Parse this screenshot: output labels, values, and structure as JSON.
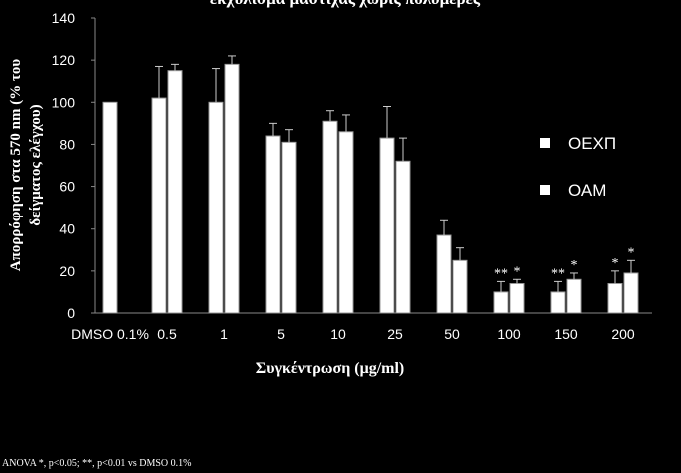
{
  "chart_data": {
    "type": "bar",
    "title": "εκχύλισμα μαστίχας χωρίς πολυμερές",
    "y_label": [
      "Απορρόφηση στα 570 nm (% του",
      "δείγματος ελέγχου)"
    ],
    "x_label": "Συγκέντρωση (μg/ml)",
    "footnote": "ANOVA *, p<0.05; **, p<0.01 vs DMSO 0.1%",
    "categories": [
      "DMSO 0.1%",
      "0.5",
      "1",
      "5",
      "10",
      "25",
      "50",
      "100",
      "150",
      "200"
    ],
    "series": [
      {
        "name": "ΟΕΧΠ",
        "color": "#ffffff",
        "values": [
          100,
          102,
          100,
          84,
          91,
          83,
          37,
          10,
          10,
          14
        ],
        "errors": [
          null,
          15,
          16,
          6,
          5,
          15,
          7,
          5,
          5,
          6
        ],
        "annotations": [
          null,
          null,
          null,
          null,
          null,
          null,
          null,
          "**",
          "**",
          "*"
        ]
      },
      {
        "name": "ΟΑΜ",
        "color": "#ffffff",
        "values": [
          null,
          115,
          118,
          81,
          86,
          72,
          25,
          14,
          16,
          19
        ],
        "errors": [
          null,
          3,
          4,
          6,
          8,
          11,
          6,
          2,
          3,
          6
        ],
        "annotations": [
          null,
          null,
          null,
          null,
          null,
          null,
          null,
          "*",
          "*",
          "*"
        ]
      }
    ],
    "ylim": [
      0,
      140
    ],
    "yticks": [
      0,
      20,
      40,
      60,
      80,
      100,
      120,
      140
    ]
  }
}
